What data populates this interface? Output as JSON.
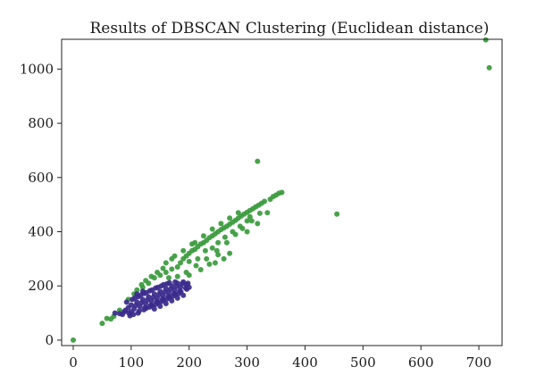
{
  "chart_data": {
    "type": "scatter",
    "title": "Results of DBSCAN Clustering (Euclidean distance)",
    "xlabel": "",
    "ylabel": "",
    "xlim": [
      -20,
      740
    ],
    "ylim": [
      -20,
      1110
    ],
    "xticks": [
      0,
      100,
      200,
      300,
      400,
      500,
      600,
      700
    ],
    "yticks": [
      0,
      200,
      400,
      600,
      800,
      1000
    ],
    "grid": false,
    "colors": {
      "cluster_green": "#3a9a3c",
      "cluster_purple": "#3a2a8c"
    },
    "series": [
      {
        "color": "#3a9a3c",
        "points": [
          [
            0,
            0
          ],
          [
            50,
            62
          ],
          [
            58,
            80
          ],
          [
            65,
            78
          ],
          [
            70,
            88
          ],
          [
            80,
            110
          ],
          [
            95,
            150
          ],
          [
            105,
            170
          ],
          [
            110,
            185
          ],
          [
            120,
            195
          ],
          [
            130,
            210
          ],
          [
            140,
            230
          ],
          [
            150,
            240
          ],
          [
            160,
            250
          ],
          [
            170,
            262
          ],
          [
            180,
            270
          ],
          [
            185,
            285
          ],
          [
            190,
            300
          ],
          [
            195,
            310
          ],
          [
            200,
            320
          ],
          [
            205,
            330
          ],
          [
            210,
            335
          ],
          [
            215,
            345
          ],
          [
            220,
            355
          ],
          [
            225,
            360
          ],
          [
            230,
            368
          ],
          [
            235,
            378
          ],
          [
            240,
            385
          ],
          [
            245,
            392
          ],
          [
            250,
            400
          ],
          [
            255,
            408
          ],
          [
            260,
            414
          ],
          [
            265,
            420
          ],
          [
            270,
            428
          ],
          [
            275,
            435
          ],
          [
            280,
            442
          ],
          [
            285,
            450
          ],
          [
            290,
            458
          ],
          [
            295,
            465
          ],
          [
            300,
            472
          ],
          [
            305,
            478
          ],
          [
            310,
            485
          ],
          [
            315,
            492
          ],
          [
            320,
            498
          ],
          [
            325,
            505
          ],
          [
            330,
            512
          ],
          [
            340,
            520
          ],
          [
            345,
            530
          ],
          [
            350,
            535
          ],
          [
            355,
            542
          ],
          [
            360,
            545
          ],
          [
            228,
            330
          ],
          [
            240,
            340
          ],
          [
            250,
            360
          ],
          [
            262,
            380
          ],
          [
            275,
            400
          ],
          [
            288,
            420
          ],
          [
            300,
            440
          ],
          [
            210,
            360
          ],
          [
            225,
            385
          ],
          [
            240,
            410
          ],
          [
            255,
            430
          ],
          [
            270,
            450
          ],
          [
            285,
            470
          ],
          [
            200,
            290
          ],
          [
            215,
            300
          ],
          [
            175,
            310
          ],
          [
            190,
            330
          ],
          [
            205,
            355
          ],
          [
            180,
            235
          ],
          [
            195,
            250
          ],
          [
            212,
            275
          ],
          [
            230,
            300
          ],
          [
            248,
            330
          ],
          [
            265,
            360
          ],
          [
            280,
            390
          ],
          [
            292,
            412
          ],
          [
            308,
            440
          ],
          [
            322,
            468
          ],
          [
            160,
            285
          ],
          [
            200,
            240
          ],
          [
            245,
            285
          ],
          [
            300,
            400
          ],
          [
            318,
            430
          ],
          [
            335,
            470
          ],
          [
            260,
            300
          ],
          [
            270,
            320
          ],
          [
            250,
            315
          ],
          [
            220,
            260
          ],
          [
            235,
            280
          ],
          [
            305,
            455
          ],
          [
            165,
            230
          ],
          [
            170,
            300
          ],
          [
            155,
            265
          ],
          [
            145,
            250
          ],
          [
            118,
            205
          ],
          [
            125,
            220
          ],
          [
            135,
            235
          ],
          [
            318,
            660
          ],
          [
            455,
            465
          ],
          [
            712,
            1108
          ],
          [
            718,
            1005
          ]
        ]
      },
      {
        "color": "#3a2a8c",
        "points": [
          [
            72,
            100
          ],
          [
            85,
            95
          ],
          [
            90,
            110
          ],
          [
            95,
            120
          ],
          [
            100,
            130
          ],
          [
            105,
            115
          ],
          [
            110,
            140
          ],
          [
            115,
            125
          ],
          [
            120,
            150
          ],
          [
            125,
            135
          ],
          [
            130,
            160
          ],
          [
            135,
            145
          ],
          [
            140,
            170
          ],
          [
            145,
            155
          ],
          [
            150,
            180
          ],
          [
            155,
            165
          ],
          [
            160,
            190
          ],
          [
            165,
            175
          ],
          [
            170,
            200
          ],
          [
            175,
            185
          ],
          [
            180,
            210
          ],
          [
            185,
            195
          ],
          [
            190,
            215
          ],
          [
            195,
            205
          ],
          [
            100,
            105
          ],
          [
            108,
            128
          ],
          [
            118,
            138
          ],
          [
            128,
            148
          ],
          [
            138,
            158
          ],
          [
            148,
            168
          ],
          [
            158,
            178
          ],
          [
            168,
            188
          ],
          [
            178,
            198
          ],
          [
            188,
            208
          ],
          [
            98,
            90
          ],
          [
            112,
            100
          ],
          [
            122,
            112
          ],
          [
            132,
            122
          ],
          [
            142,
            132
          ],
          [
            152,
            142
          ],
          [
            162,
            152
          ],
          [
            172,
            162
          ],
          [
            182,
            172
          ],
          [
            92,
            140
          ],
          [
            102,
            150
          ],
          [
            112,
            160
          ],
          [
            122,
            172
          ],
          [
            132,
            182
          ],
          [
            142,
            192
          ],
          [
            152,
            200
          ],
          [
            162,
            208
          ],
          [
            126,
            118
          ],
          [
            136,
            128
          ],
          [
            146,
            138
          ],
          [
            156,
            148
          ],
          [
            166,
            158
          ],
          [
            176,
            168
          ],
          [
            186,
            178
          ],
          [
            196,
            188
          ],
          [
            120,
            180
          ],
          [
            110,
            170
          ],
          [
            140,
            115
          ],
          [
            150,
            125
          ],
          [
            160,
            135
          ],
          [
            170,
            145
          ],
          [
            180,
            155
          ],
          [
            190,
            165
          ],
          [
            200,
            195
          ],
          [
            198,
            210
          ],
          [
            104,
            95
          ],
          [
            114,
            108
          ],
          [
            124,
            120
          ],
          [
            134,
            130
          ],
          [
            144,
            142
          ],
          [
            154,
            152
          ],
          [
            164,
            162
          ],
          [
            174,
            172
          ],
          [
            184,
            182
          ],
          [
            194,
            192
          ],
          [
            96,
            100
          ],
          [
            88,
            105
          ],
          [
            80,
            98
          ],
          [
            106,
            155
          ],
          [
            116,
            165
          ],
          [
            126,
            175
          ],
          [
            136,
            185
          ],
          [
            146,
            195
          ],
          [
            156,
            205
          ],
          [
            166,
            212
          ],
          [
            176,
            215
          ]
        ]
      }
    ]
  }
}
